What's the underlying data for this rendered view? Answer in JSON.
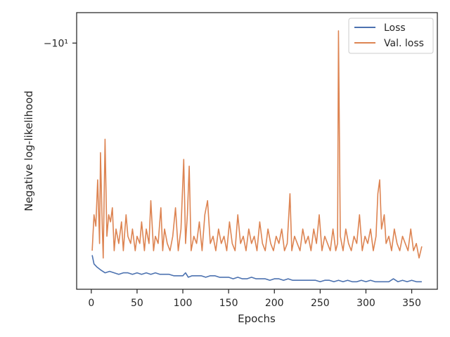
{
  "chart_data": {
    "type": "line",
    "xlabel": "Epochs",
    "ylabel": "Negative log-likelihood",
    "xlim": [
      -16,
      378
    ],
    "x_ticks": [
      0,
      50,
      100,
      150,
      200,
      250,
      300,
      350
    ],
    "y_scale": "symlog (negative values)",
    "y_tick": {
      "value": -10,
      "label": "−10¹"
    },
    "grid": false,
    "legend_position": "upper right",
    "series": [
      {
        "name": "Loss",
        "color": "#4c72b0",
        "points": [
          [
            1,
            -8.42
          ],
          [
            3,
            -8.36
          ],
          [
            6,
            -8.34
          ],
          [
            10,
            -8.32
          ],
          [
            15,
            -8.3
          ],
          [
            20,
            -8.31
          ],
          [
            25,
            -8.3
          ],
          [
            30,
            -8.29
          ],
          [
            35,
            -8.3
          ],
          [
            40,
            -8.3
          ],
          [
            45,
            -8.29
          ],
          [
            50,
            -8.3
          ],
          [
            55,
            -8.29
          ],
          [
            60,
            -8.3
          ],
          [
            65,
            -8.29
          ],
          [
            70,
            -8.3
          ],
          [
            75,
            -8.29
          ],
          [
            80,
            -8.29
          ],
          [
            85,
            -8.29
          ],
          [
            90,
            -8.28
          ],
          [
            95,
            -8.28
          ],
          [
            100,
            -8.28
          ],
          [
            103,
            -8.3
          ],
          [
            106,
            -8.27
          ],
          [
            110,
            -8.28
          ],
          [
            115,
            -8.28
          ],
          [
            120,
            -8.28
          ],
          [
            125,
            -8.27
          ],
          [
            130,
            -8.28
          ],
          [
            135,
            -8.28
          ],
          [
            140,
            -8.27
          ],
          [
            145,
            -8.27
          ],
          [
            150,
            -8.27
          ],
          [
            155,
            -8.26
          ],
          [
            160,
            -8.27
          ],
          [
            165,
            -8.26
          ],
          [
            170,
            -8.26
          ],
          [
            175,
            -8.27
          ],
          [
            180,
            -8.26
          ],
          [
            185,
            -8.26
          ],
          [
            190,
            -8.26
          ],
          [
            195,
            -8.25
          ],
          [
            200,
            -8.26
          ],
          [
            205,
            -8.26
          ],
          [
            210,
            -8.25
          ],
          [
            215,
            -8.26
          ],
          [
            220,
            -8.25
          ],
          [
            225,
            -8.25
          ],
          [
            230,
            -8.25
          ],
          [
            235,
            -8.25
          ],
          [
            240,
            -8.25
          ],
          [
            245,
            -8.25
          ],
          [
            250,
            -8.24
          ],
          [
            255,
            -8.25
          ],
          [
            260,
            -8.25
          ],
          [
            265,
            -8.24
          ],
          [
            270,
            -8.25
          ],
          [
            275,
            -8.24
          ],
          [
            280,
            -8.25
          ],
          [
            285,
            -8.24
          ],
          [
            290,
            -8.24
          ],
          [
            295,
            -8.25
          ],
          [
            300,
            -8.24
          ],
          [
            305,
            -8.25
          ],
          [
            310,
            -8.24
          ],
          [
            315,
            -8.24
          ],
          [
            320,
            -8.24
          ],
          [
            325,
            -8.24
          ],
          [
            330,
            -8.26
          ],
          [
            335,
            -8.24
          ],
          [
            340,
            -8.25
          ],
          [
            345,
            -8.24
          ],
          [
            350,
            -8.25
          ],
          [
            355,
            -8.24
          ],
          [
            361,
            -8.24
          ]
        ]
      },
      {
        "name": "Val. loss",
        "color": "#dd8452",
        "points": [
          [
            1,
            -8.45
          ],
          [
            3,
            -8.7
          ],
          [
            5,
            -8.62
          ],
          [
            7,
            -8.95
          ],
          [
            9,
            -8.5
          ],
          [
            10,
            -9.15
          ],
          [
            12,
            -8.6
          ],
          [
            13,
            -8.4
          ],
          [
            15,
            -9.25
          ],
          [
            17,
            -8.55
          ],
          [
            19,
            -8.7
          ],
          [
            21,
            -8.65
          ],
          [
            23,
            -8.75
          ],
          [
            25,
            -8.45
          ],
          [
            27,
            -8.6
          ],
          [
            30,
            -8.5
          ],
          [
            33,
            -8.65
          ],
          [
            35,
            -8.45
          ],
          [
            38,
            -8.7
          ],
          [
            40,
            -8.55
          ],
          [
            43,
            -8.5
          ],
          [
            45,
            -8.6
          ],
          [
            48,
            -8.45
          ],
          [
            50,
            -8.55
          ],
          [
            53,
            -8.5
          ],
          [
            55,
            -8.65
          ],
          [
            58,
            -8.45
          ],
          [
            60,
            -8.6
          ],
          [
            63,
            -8.5
          ],
          [
            65,
            -8.8
          ],
          [
            68,
            -8.45
          ],
          [
            70,
            -8.55
          ],
          [
            73,
            -8.5
          ],
          [
            76,
            -8.75
          ],
          [
            78,
            -8.45
          ],
          [
            80,
            -8.6
          ],
          [
            83,
            -8.5
          ],
          [
            86,
            -8.45
          ],
          [
            89,
            -8.55
          ],
          [
            92,
            -8.75
          ],
          [
            95,
            -8.45
          ],
          [
            98,
            -8.6
          ],
          [
            101,
            -9.1
          ],
          [
            103,
            -8.5
          ],
          [
            105,
            -8.7
          ],
          [
            107,
            -9.05
          ],
          [
            109,
            -8.45
          ],
          [
            112,
            -8.55
          ],
          [
            115,
            -8.5
          ],
          [
            118,
            -8.65
          ],
          [
            121,
            -8.45
          ],
          [
            124,
            -8.7
          ],
          [
            127,
            -8.8
          ],
          [
            130,
            -8.5
          ],
          [
            133,
            -8.55
          ],
          [
            136,
            -8.45
          ],
          [
            139,
            -8.6
          ],
          [
            142,
            -8.5
          ],
          [
            145,
            -8.55
          ],
          [
            148,
            -8.45
          ],
          [
            151,
            -8.65
          ],
          [
            154,
            -8.5
          ],
          [
            157,
            -8.45
          ],
          [
            160,
            -8.7
          ],
          [
            163,
            -8.5
          ],
          [
            166,
            -8.55
          ],
          [
            169,
            -8.45
          ],
          [
            172,
            -8.6
          ],
          [
            175,
            -8.5
          ],
          [
            178,
            -8.55
          ],
          [
            181,
            -8.45
          ],
          [
            184,
            -8.65
          ],
          [
            187,
            -8.5
          ],
          [
            190,
            -8.45
          ],
          [
            193,
            -8.6
          ],
          [
            196,
            -8.5
          ],
          [
            199,
            -8.45
          ],
          [
            202,
            -8.55
          ],
          [
            205,
            -8.5
          ],
          [
            208,
            -8.6
          ],
          [
            211,
            -8.45
          ],
          [
            214,
            -8.5
          ],
          [
            217,
            -8.85
          ],
          [
            219,
            -8.45
          ],
          [
            222,
            -8.55
          ],
          [
            225,
            -8.5
          ],
          [
            228,
            -8.45
          ],
          [
            231,
            -8.6
          ],
          [
            234,
            -8.5
          ],
          [
            237,
            -8.55
          ],
          [
            240,
            -8.45
          ],
          [
            243,
            -8.6
          ],
          [
            246,
            -8.5
          ],
          [
            249,
            -8.7
          ],
          [
            252,
            -8.45
          ],
          [
            255,
            -8.55
          ],
          [
            258,
            -8.5
          ],
          [
            261,
            -8.45
          ],
          [
            264,
            -8.6
          ],
          [
            267,
            -8.45
          ],
          [
            269,
            -8.5
          ],
          [
            270,
            -10.1
          ],
          [
            272,
            -8.55
          ],
          [
            275,
            -8.45
          ],
          [
            278,
            -8.6
          ],
          [
            281,
            -8.5
          ],
          [
            284,
            -8.45
          ],
          [
            287,
            -8.55
          ],
          [
            290,
            -8.5
          ],
          [
            293,
            -8.7
          ],
          [
            296,
            -8.45
          ],
          [
            299,
            -8.55
          ],
          [
            302,
            -8.5
          ],
          [
            305,
            -8.6
          ],
          [
            308,
            -8.45
          ],
          [
            311,
            -8.55
          ],
          [
            313,
            -8.85
          ],
          [
            315,
            -8.95
          ],
          [
            317,
            -8.6
          ],
          [
            320,
            -8.7
          ],
          [
            322,
            -8.5
          ],
          [
            325,
            -8.55
          ],
          [
            328,
            -8.45
          ],
          [
            331,
            -8.6
          ],
          [
            334,
            -8.5
          ],
          [
            337,
            -8.45
          ],
          [
            340,
            -8.55
          ],
          [
            343,
            -8.5
          ],
          [
            346,
            -8.45
          ],
          [
            349,
            -8.6
          ],
          [
            352,
            -8.45
          ],
          [
            355,
            -8.5
          ],
          [
            358,
            -8.4
          ],
          [
            361,
            -8.48
          ]
        ]
      }
    ]
  }
}
